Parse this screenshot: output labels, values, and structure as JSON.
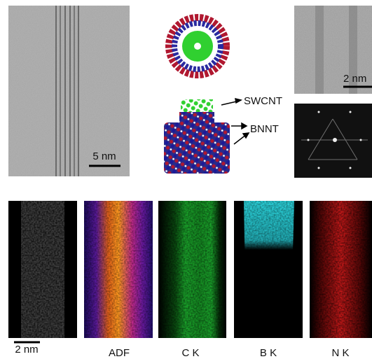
{
  "top_left_image": {
    "scale_bar": "5 nm"
  },
  "model": {
    "labels": [
      "SWCNT",
      "BNNT"
    ]
  },
  "top_right_image": {
    "scale_bar": "2 nm"
  },
  "maps": {
    "scale_bar": "2 nm",
    "labels": [
      "ADF",
      "C K",
      "B K",
      "N K"
    ]
  }
}
